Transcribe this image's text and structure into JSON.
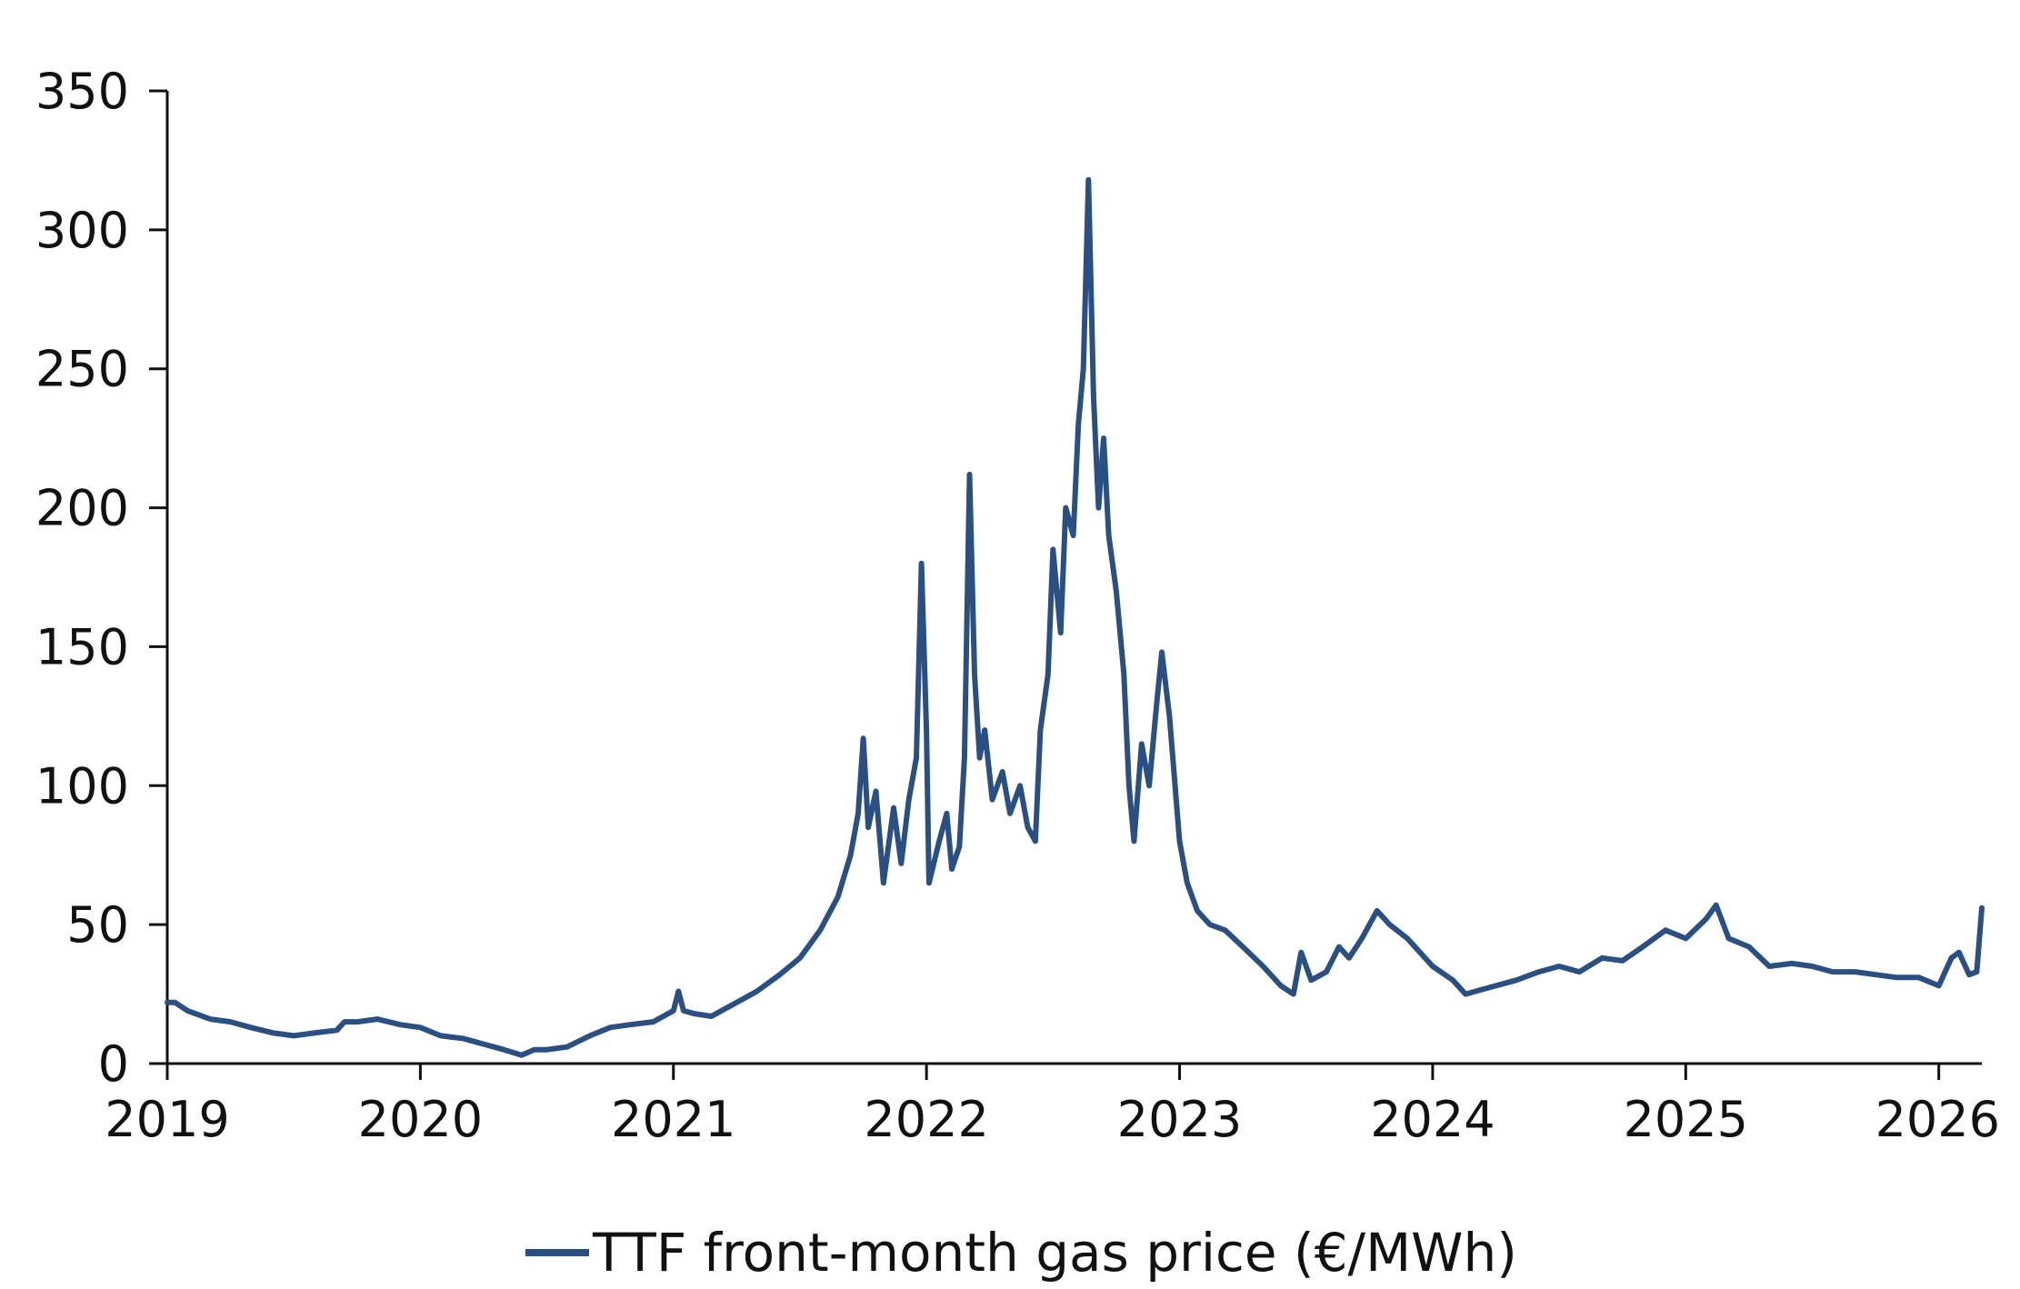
{
  "chart_data": {
    "type": "line",
    "title": "",
    "xlabel": "",
    "ylabel": "",
    "x_ticks": [
      "2019",
      "2020",
      "2021",
      "2022",
      "2023",
      "2024",
      "2025",
      "2026"
    ],
    "y_ticks": [
      "0",
      "50",
      "100",
      "150",
      "200",
      "250",
      "300",
      "350"
    ],
    "xlim": [
      2019.0,
      2026.17
    ],
    "ylim": [
      0,
      350
    ],
    "grid": false,
    "legend_position": "bottom-center",
    "series": [
      {
        "name": "TTF front-month gas price (€/MWh)",
        "color": "#2a4f82",
        "points": [
          [
            2019.0,
            22
          ],
          [
            2019.03,
            22
          ],
          [
            2019.08,
            19
          ],
          [
            2019.17,
            16
          ],
          [
            2019.25,
            15
          ],
          [
            2019.33,
            13
          ],
          [
            2019.42,
            11
          ],
          [
            2019.5,
            10
          ],
          [
            2019.58,
            11
          ],
          [
            2019.67,
            12
          ],
          [
            2019.7,
            15
          ],
          [
            2019.75,
            15
          ],
          [
            2019.83,
            16
          ],
          [
            2019.92,
            14
          ],
          [
            2020.0,
            13
          ],
          [
            2020.08,
            10
          ],
          [
            2020.17,
            9
          ],
          [
            2020.25,
            7
          ],
          [
            2020.33,
            5
          ],
          [
            2020.4,
            3
          ],
          [
            2020.45,
            5
          ],
          [
            2020.5,
            5
          ],
          [
            2020.58,
            6
          ],
          [
            2020.67,
            10
          ],
          [
            2020.75,
            13
          ],
          [
            2020.83,
            14
          ],
          [
            2020.92,
            15
          ],
          [
            2021.0,
            19
          ],
          [
            2021.02,
            26
          ],
          [
            2021.04,
            19
          ],
          [
            2021.08,
            18
          ],
          [
            2021.15,
            17
          ],
          [
            2021.25,
            22
          ],
          [
            2021.33,
            26
          ],
          [
            2021.42,
            32
          ],
          [
            2021.5,
            38
          ],
          [
            2021.58,
            48
          ],
          [
            2021.65,
            60
          ],
          [
            2021.7,
            75
          ],
          [
            2021.73,
            90
          ],
          [
            2021.75,
            117
          ],
          [
            2021.77,
            85
          ],
          [
            2021.8,
            98
          ],
          [
            2021.83,
            65
          ],
          [
            2021.87,
            92
          ],
          [
            2021.9,
            72
          ],
          [
            2021.93,
            95
          ],
          [
            2021.96,
            110
          ],
          [
            2021.98,
            180
          ],
          [
            2022.0,
            120
          ],
          [
            2022.01,
            65
          ],
          [
            2022.05,
            80
          ],
          [
            2022.08,
            90
          ],
          [
            2022.1,
            70
          ],
          [
            2022.13,
            78
          ],
          [
            2022.15,
            110
          ],
          [
            2022.17,
            212
          ],
          [
            2022.19,
            140
          ],
          [
            2022.21,
            110
          ],
          [
            2022.23,
            120
          ],
          [
            2022.26,
            95
          ],
          [
            2022.3,
            105
          ],
          [
            2022.33,
            90
          ],
          [
            2022.37,
            100
          ],
          [
            2022.4,
            85
          ],
          [
            2022.43,
            80
          ],
          [
            2022.45,
            120
          ],
          [
            2022.48,
            140
          ],
          [
            2022.5,
            185
          ],
          [
            2022.53,
            155
          ],
          [
            2022.55,
            200
          ],
          [
            2022.58,
            190
          ],
          [
            2022.6,
            230
          ],
          [
            2022.62,
            250
          ],
          [
            2022.64,
            318
          ],
          [
            2022.66,
            240
          ],
          [
            2022.68,
            200
          ],
          [
            2022.7,
            225
          ],
          [
            2022.72,
            190
          ],
          [
            2022.75,
            170
          ],
          [
            2022.78,
            140
          ],
          [
            2022.8,
            100
          ],
          [
            2022.82,
            80
          ],
          [
            2022.85,
            115
          ],
          [
            2022.88,
            100
          ],
          [
            2022.91,
            130
          ],
          [
            2022.93,
            148
          ],
          [
            2022.96,
            125
          ],
          [
            2023.0,
            80
          ],
          [
            2023.03,
            65
          ],
          [
            2023.07,
            55
          ],
          [
            2023.12,
            50
          ],
          [
            2023.18,
            48
          ],
          [
            2023.25,
            42
          ],
          [
            2023.33,
            35
          ],
          [
            2023.4,
            28
          ],
          [
            2023.45,
            25
          ],
          [
            2023.48,
            40
          ],
          [
            2023.52,
            30
          ],
          [
            2023.58,
            33
          ],
          [
            2023.63,
            42
          ],
          [
            2023.67,
            38
          ],
          [
            2023.72,
            45
          ],
          [
            2023.78,
            55
          ],
          [
            2023.83,
            50
          ],
          [
            2023.9,
            45
          ],
          [
            2023.95,
            40
          ],
          [
            2024.0,
            35
          ],
          [
            2024.08,
            30
          ],
          [
            2024.13,
            25
          ],
          [
            2024.17,
            26
          ],
          [
            2024.25,
            28
          ],
          [
            2024.33,
            30
          ],
          [
            2024.42,
            33
          ],
          [
            2024.5,
            35
          ],
          [
            2024.58,
            33
          ],
          [
            2024.67,
            38
          ],
          [
            2024.75,
            37
          ],
          [
            2024.83,
            42
          ],
          [
            2024.92,
            48
          ],
          [
            2025.0,
            45
          ],
          [
            2025.08,
            52
          ],
          [
            2025.12,
            57
          ],
          [
            2025.17,
            45
          ],
          [
            2025.25,
            42
          ],
          [
            2025.33,
            35
          ],
          [
            2025.42,
            36
          ],
          [
            2025.5,
            35
          ],
          [
            2025.58,
            33
          ],
          [
            2025.67,
            33
          ],
          [
            2025.75,
            32
          ],
          [
            2025.83,
            31
          ],
          [
            2025.92,
            31
          ],
          [
            2026.0,
            28
          ],
          [
            2026.05,
            38
          ],
          [
            2026.08,
            40
          ],
          [
            2026.12,
            32
          ],
          [
            2026.15,
            33
          ],
          [
            2026.17,
            56
          ]
        ]
      }
    ]
  }
}
